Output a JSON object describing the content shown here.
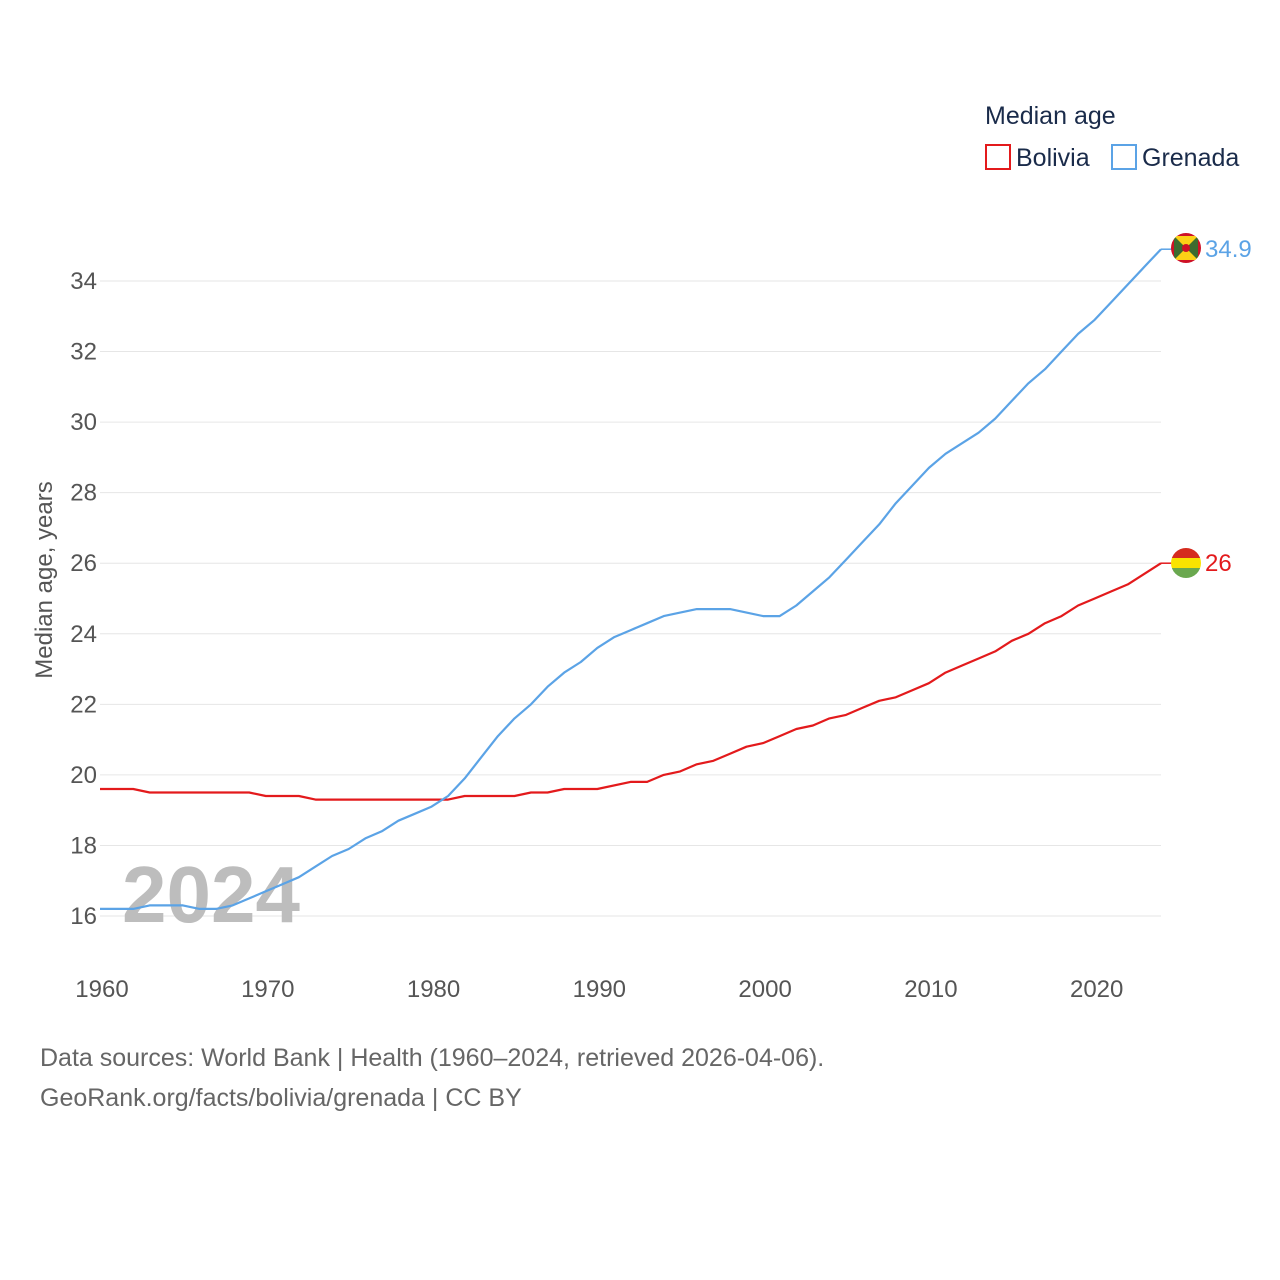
{
  "chart_data": {
    "type": "line",
    "legend_title": "Median age",
    "ylabel": "Median age, years",
    "xlabel": "",
    "ylim": [
      15,
      35.5
    ],
    "xlim": [
      1960,
      2024
    ],
    "x_ticks": [
      1960,
      1970,
      1980,
      1990,
      2000,
      2010,
      2020
    ],
    "y_ticks": [
      16,
      18,
      20,
      22,
      24,
      26,
      28,
      30,
      32,
      34
    ],
    "grid": true,
    "legend_position": "top-right",
    "current_year": "2024",
    "series": [
      {
        "name": "Bolivia",
        "color": "#e31a1c",
        "end_label": "26",
        "flag": "bolivia-flag",
        "points": [
          [
            1960,
            19.6
          ],
          [
            1962,
            19.6
          ],
          [
            1963,
            19.5
          ],
          [
            1969,
            19.5
          ],
          [
            1970,
            19.4
          ],
          [
            1972,
            19.4
          ],
          [
            1973,
            19.3
          ],
          [
            1981,
            19.3
          ],
          [
            1982,
            19.4
          ],
          [
            1985,
            19.4
          ],
          [
            1986,
            19.5
          ],
          [
            1987,
            19.5
          ],
          [
            1988,
            19.6
          ],
          [
            1990,
            19.6
          ],
          [
            1992,
            19.8
          ],
          [
            1993,
            19.8
          ],
          [
            1994,
            20.0
          ],
          [
            1995,
            20.1
          ],
          [
            1996,
            20.3
          ],
          [
            1997,
            20.4
          ],
          [
            1998,
            20.6
          ],
          [
            1999,
            20.8
          ],
          [
            2000,
            20.9
          ],
          [
            2001,
            21.1
          ],
          [
            2002,
            21.3
          ],
          [
            2003,
            21.4
          ],
          [
            2004,
            21.6
          ],
          [
            2005,
            21.7
          ],
          [
            2006,
            21.9
          ],
          [
            2007,
            22.1
          ],
          [
            2008,
            22.2
          ],
          [
            2009,
            22.4
          ],
          [
            2010,
            22.6
          ],
          [
            2011,
            22.9
          ],
          [
            2012,
            23.1
          ],
          [
            2013,
            23.3
          ],
          [
            2014,
            23.5
          ],
          [
            2015,
            23.8
          ],
          [
            2016,
            24.0
          ],
          [
            2017,
            24.3
          ],
          [
            2018,
            24.5
          ],
          [
            2019,
            24.8
          ],
          [
            2020,
            25.0
          ],
          [
            2021,
            25.2
          ],
          [
            2022,
            25.4
          ],
          [
            2023,
            25.7
          ],
          [
            2024,
            26.0
          ]
        ]
      },
      {
        "name": "Grenada",
        "color": "#5ba3e6",
        "end_label": "34.9",
        "flag": "grenada-flag",
        "points": [
          [
            1960,
            16.2
          ],
          [
            1962,
            16.2
          ],
          [
            1963,
            16.3
          ],
          [
            1965,
            16.3
          ],
          [
            1966,
            16.2
          ],
          [
            1967,
            16.2
          ],
          [
            1968,
            16.3
          ],
          [
            1969,
            16.5
          ],
          [
            1970,
            16.7
          ],
          [
            1971,
            16.9
          ],
          [
            1972,
            17.1
          ],
          [
            1973,
            17.4
          ],
          [
            1974,
            17.7
          ],
          [
            1975,
            17.9
          ],
          [
            1976,
            18.2
          ],
          [
            1977,
            18.4
          ],
          [
            1978,
            18.7
          ],
          [
            1979,
            18.9
          ],
          [
            1980,
            19.1
          ],
          [
            1981,
            19.4
          ],
          [
            1982,
            19.9
          ],
          [
            1983,
            20.5
          ],
          [
            1984,
            21.1
          ],
          [
            1985,
            21.6
          ],
          [
            1986,
            22.0
          ],
          [
            1987,
            22.5
          ],
          [
            1988,
            22.9
          ],
          [
            1989,
            23.2
          ],
          [
            1990,
            23.6
          ],
          [
            1991,
            23.9
          ],
          [
            1992,
            24.1
          ],
          [
            1993,
            24.3
          ],
          [
            1994,
            24.5
          ],
          [
            1995,
            24.6
          ],
          [
            1996,
            24.7
          ],
          [
            1997,
            24.7
          ],
          [
            1998,
            24.7
          ],
          [
            1999,
            24.6
          ],
          [
            2000,
            24.5
          ],
          [
            2001,
            24.5
          ],
          [
            2002,
            24.8
          ],
          [
            2003,
            25.2
          ],
          [
            2004,
            25.6
          ],
          [
            2005,
            26.1
          ],
          [
            2006,
            26.6
          ],
          [
            2007,
            27.1
          ],
          [
            2008,
            27.7
          ],
          [
            2009,
            28.2
          ],
          [
            2010,
            28.7
          ],
          [
            2011,
            29.1
          ],
          [
            2012,
            29.4
          ],
          [
            2013,
            29.7
          ],
          [
            2014,
            30.1
          ],
          [
            2015,
            30.6
          ],
          [
            2016,
            31.1
          ],
          [
            2017,
            31.5
          ],
          [
            2018,
            32.0
          ],
          [
            2019,
            32.5
          ],
          [
            2020,
            32.9
          ],
          [
            2021,
            33.4
          ],
          [
            2022,
            33.9
          ],
          [
            2023,
            34.4
          ],
          [
            2024,
            34.9
          ]
        ]
      }
    ]
  },
  "footer": {
    "line1": "Data sources: World Bank | Health (1960–2024, retrieved 2026-04-06).",
    "line2": "GeoRank.org/facts/bolivia/grenada | CC BY"
  }
}
